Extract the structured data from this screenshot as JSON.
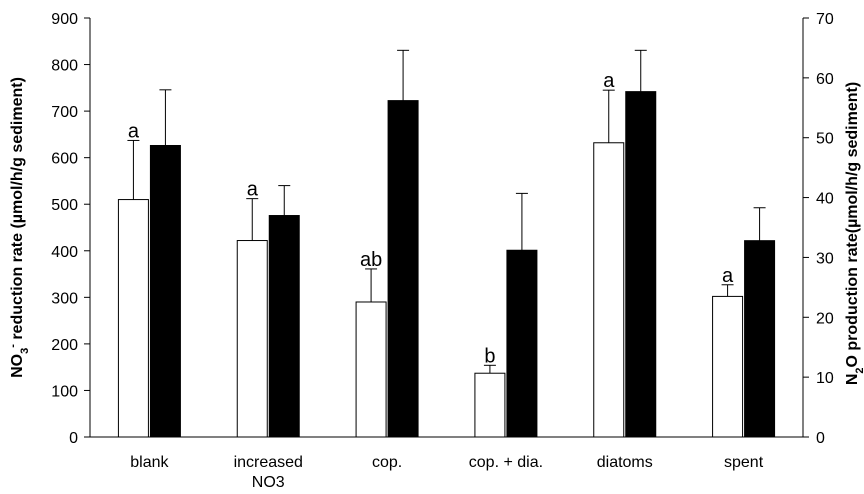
{
  "chart_data": {
    "type": "bar",
    "categories": [
      [
        "blank"
      ],
      [
        "increased",
        "NO3"
      ],
      [
        "cop."
      ],
      [
        "cop. + dia."
      ],
      [
        "diatoms"
      ],
      [
        "spent"
      ]
    ],
    "series": [
      {
        "axis": "left",
        "color": "#ffffff",
        "values": [
          510,
          422,
          290,
          137,
          632,
          302
        ],
        "errors": [
          127,
          90,
          71,
          17,
          113,
          25
        ],
        "significance": [
          "a",
          "a",
          "ab",
          "b",
          "a",
          "a"
        ]
      },
      {
        "axis": "right",
        "color": "#000000",
        "values": [
          48.7,
          37.0,
          56.2,
          31.2,
          57.7,
          32.8
        ],
        "errors": [
          9.3,
          5.0,
          8.4,
          9.5,
          6.9,
          5.5
        ]
      }
    ],
    "y_left": {
      "min": 0,
      "max": 900,
      "step": 100,
      "ticks": [
        "0",
        "100",
        "200",
        "300",
        "400",
        "500",
        "600",
        "700",
        "800",
        "900"
      ],
      "label_parts": [
        {
          "text": "NO",
          "kind": "normal"
        },
        {
          "text": "3",
          "kind": "sub"
        },
        {
          "text": "-",
          "kind": "sup"
        },
        {
          "text": " reduction rate (µmol/h/g sediment)",
          "kind": "normal"
        }
      ]
    },
    "y_right": {
      "min": 0,
      "max": 70,
      "step": 10,
      "ticks": [
        "0",
        "10",
        "20",
        "30",
        "40",
        "50",
        "60",
        "70"
      ],
      "label_parts": [
        {
          "text": "N",
          "kind": "normal"
        },
        {
          "text": "2",
          "kind": "sub"
        },
        {
          "text": "O production rate(µmol/h/g sediment)",
          "kind": "normal"
        }
      ]
    },
    "grid": false,
    "legend": "none"
  }
}
